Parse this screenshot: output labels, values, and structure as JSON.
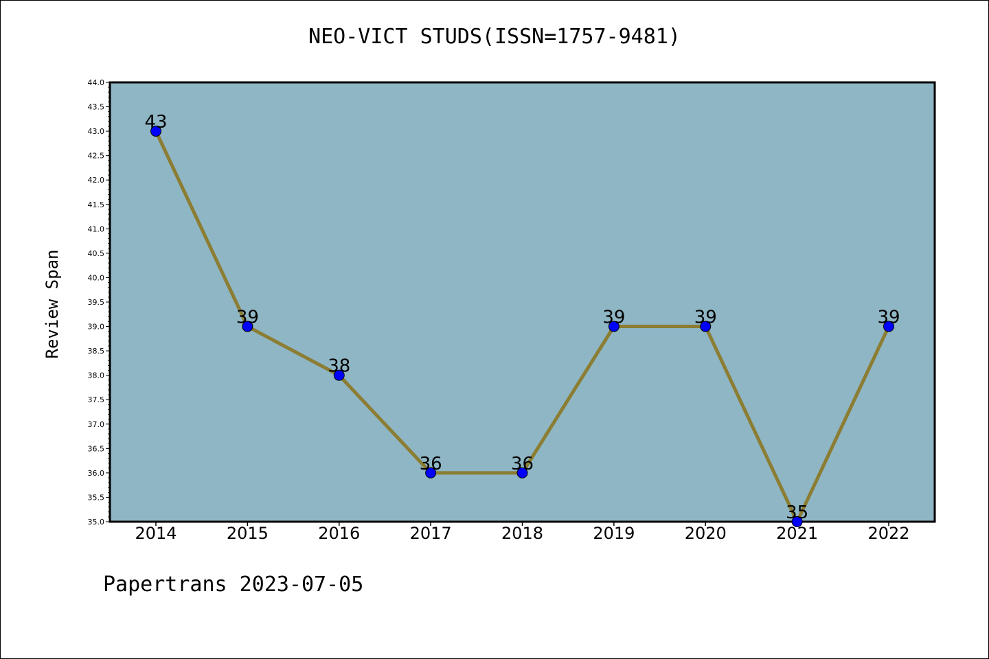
{
  "chart_data": {
    "type": "line",
    "title": "NEO-VICT STUDS(ISSN=1757-9481)",
    "xlabel": "",
    "ylabel": "Review Span",
    "categories": [
      "2014",
      "2015",
      "2016",
      "2017",
      "2018",
      "2019",
      "2020",
      "2021",
      "2022"
    ],
    "series": [
      {
        "values": [
          43,
          39,
          38,
          36,
          36,
          39,
          39,
          35,
          39
        ]
      }
    ],
    "data_labels": [
      "43",
      "39",
      "38",
      "36",
      "36",
      "39",
      "39",
      "35",
      "39"
    ],
    "ylim": [
      35.0,
      44.0
    ],
    "y_ticks": [
      "35.0",
      "35.5",
      "36.0",
      "36.5",
      "37.0",
      "37.5",
      "38.0",
      "38.5",
      "39.0",
      "39.5",
      "40.0",
      "40.5",
      "41.0",
      "41.5",
      "42.0",
      "42.5",
      "43.0",
      "43.5",
      "44.0"
    ],
    "grid": false,
    "colors": {
      "plot_background": "#8fb6c4",
      "line": "#8b7d33",
      "marker": "#0000ff"
    }
  },
  "footer": "Papertrans 2023-07-05"
}
